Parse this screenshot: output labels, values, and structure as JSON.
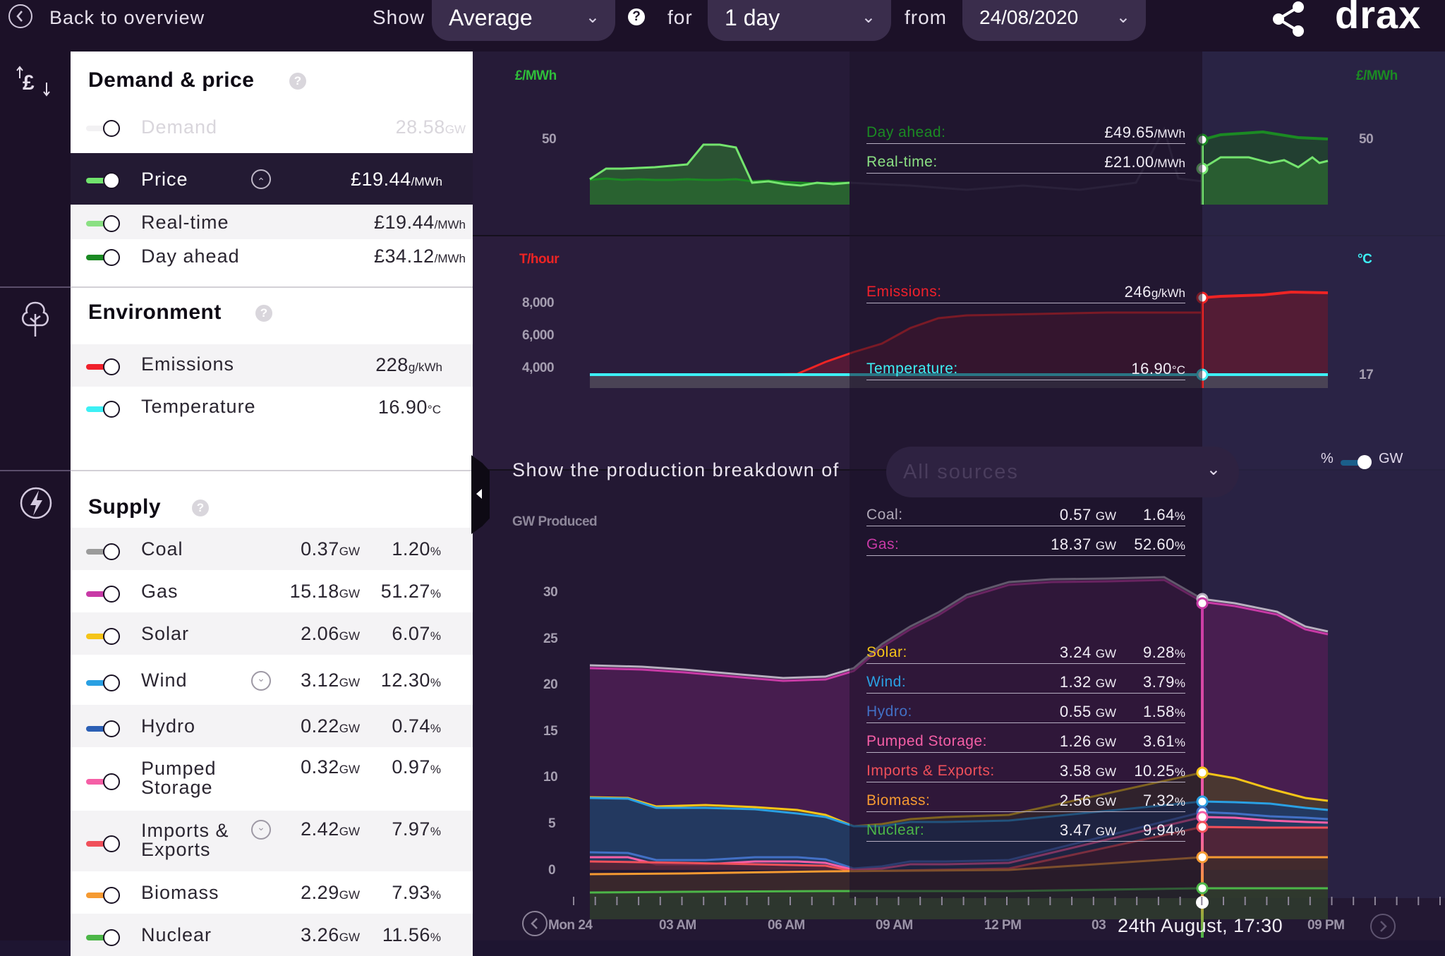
{
  "topbar": {
    "back_label": "Back to overview",
    "show_label": "Show",
    "show_value": "Average",
    "for_label": "for",
    "period_value": "1 day",
    "from_label": "from",
    "date_value": "24/08/2020",
    "brand": "drax"
  },
  "panel": {
    "demand_price": {
      "title": "Demand & price",
      "rows": [
        {
          "label": "Demand",
          "value": "28.58",
          "unit": "GW",
          "color": "#f2f1f3",
          "state": "disabled"
        },
        {
          "label": "Price",
          "value": "£19.44",
          "unit": "/MWh",
          "color": "#71e36d",
          "state": "selected"
        },
        {
          "label": "Real-time",
          "value": "£19.44",
          "unit": "/MWh",
          "color": "#8be083"
        },
        {
          "label": "Day ahead",
          "value": "£34.12",
          "unit": "/MWh",
          "color": "#1b8a23"
        }
      ]
    },
    "environment": {
      "title": "Environment",
      "rows": [
        {
          "label": "Emissions",
          "value": "228",
          "unit": "g/kWh",
          "color": "#f0202b"
        },
        {
          "label": "Temperature",
          "value": "16.90",
          "unit": "°C",
          "color": "#3df0f5"
        }
      ]
    },
    "supply": {
      "title": "Supply",
      "rows": [
        {
          "label": "Coal",
          "gw": "0.37",
          "pct": "1.20",
          "color": "#9b9b9b"
        },
        {
          "label": "Gas",
          "gw": "15.18",
          "pct": "51.27",
          "color": "#c83aa6"
        },
        {
          "label": "Solar",
          "gw": "2.06",
          "pct": "6.07",
          "color": "#f5c418"
        },
        {
          "label": "Wind",
          "gw": "3.12",
          "pct": "12.30",
          "color": "#2aa0e3"
        },
        {
          "label": "Hydro",
          "gw": "0.22",
          "pct": "0.74",
          "color": "#2b5fb5"
        },
        {
          "label": "Pumped",
          "label2": "Storage",
          "gw": "0.32",
          "pct": "0.97",
          "color": "#f55fa6"
        },
        {
          "label": "Imports &",
          "label2": "Exports",
          "gw": "2.42",
          "pct": "7.97",
          "color": "#f0505a"
        },
        {
          "label": "Biomass",
          "gw": "2.29",
          "pct": "7.93",
          "color": "#f59a32"
        },
        {
          "label": "Nuclear",
          "gw": "3.26",
          "pct": "11.56",
          "color": "#4cb648"
        }
      ],
      "gw_unit": "GW",
      "pct_unit": "%"
    }
  },
  "price_chart": {
    "left_axis_label": "£/MWh",
    "right_axis_label": "£/MWh",
    "left_tick": "50",
    "right_tick": "50",
    "readouts": [
      {
        "label": "Day ahead:",
        "value": "£49.65",
        "unit": "/MWh",
        "color": "#1b8a23"
      },
      {
        "label": "Real-time:",
        "value": "£21.00",
        "unit": "/MWh",
        "color": "#8be083"
      }
    ]
  },
  "env_chart": {
    "left_axis_label": "T/hour",
    "right_axis_label": "°C",
    "left_ticks": [
      "8,000",
      "6,000",
      "4,000"
    ],
    "right_tick": "17",
    "readouts": [
      {
        "label": "Emissions:",
        "value": "246",
        "unit": "g/kWh",
        "color": "#f0202b"
      },
      {
        "label": "Temperature:",
        "value": "16.90",
        "unit": "°C",
        "color": "#3df0f5"
      }
    ]
  },
  "supply_chart": {
    "breakdown_label": "Show the production breakdown of",
    "breakdown_select": "All sources",
    "toggle_pct": "%",
    "toggle_gw": "GW",
    "y_axis_label": "GW Produced",
    "y_ticks": [
      "30",
      "25",
      "20",
      "15",
      "10",
      "5",
      "0"
    ],
    "readouts": [
      {
        "label": "Coal:",
        "gw": "0.57",
        "pct": "1.64",
        "color": "#b0a9b8"
      },
      {
        "label": "Gas:",
        "gw": "18.37",
        "pct": "52.60",
        "color": "#c83aa6"
      },
      {
        "label": "Solar:",
        "gw": "3.24",
        "pct": "9.28",
        "color": "#f5c418"
      },
      {
        "label": "Wind:",
        "gw": "1.32",
        "pct": "3.79",
        "color": "#2aa0e3"
      },
      {
        "label": "Hydro:",
        "gw": "0.55",
        "pct": "1.58",
        "color": "#4270c5"
      },
      {
        "label": "Pumped Storage:",
        "gw": "1.26",
        "pct": "3.61",
        "color": "#f55fa6"
      },
      {
        "label": "Imports & Exports:",
        "gw": "3.58",
        "pct": "10.25",
        "color": "#f0505a"
      },
      {
        "label": "Biomass:",
        "gw": "2.56",
        "pct": "7.32",
        "color": "#f59a32"
      },
      {
        "label": "Nuclear:",
        "gw": "3.47",
        "pct": "9.94",
        "color": "#4cb648"
      }
    ],
    "gw_unit": "GW",
    "pct_unit": "%"
  },
  "timeline": {
    "labels": [
      "Mon 24",
      "03 AM",
      "06 AM",
      "09 AM",
      "12 PM",
      "03",
      "09 PM"
    ],
    "cursor_label": "24th August, 17:30"
  }
}
